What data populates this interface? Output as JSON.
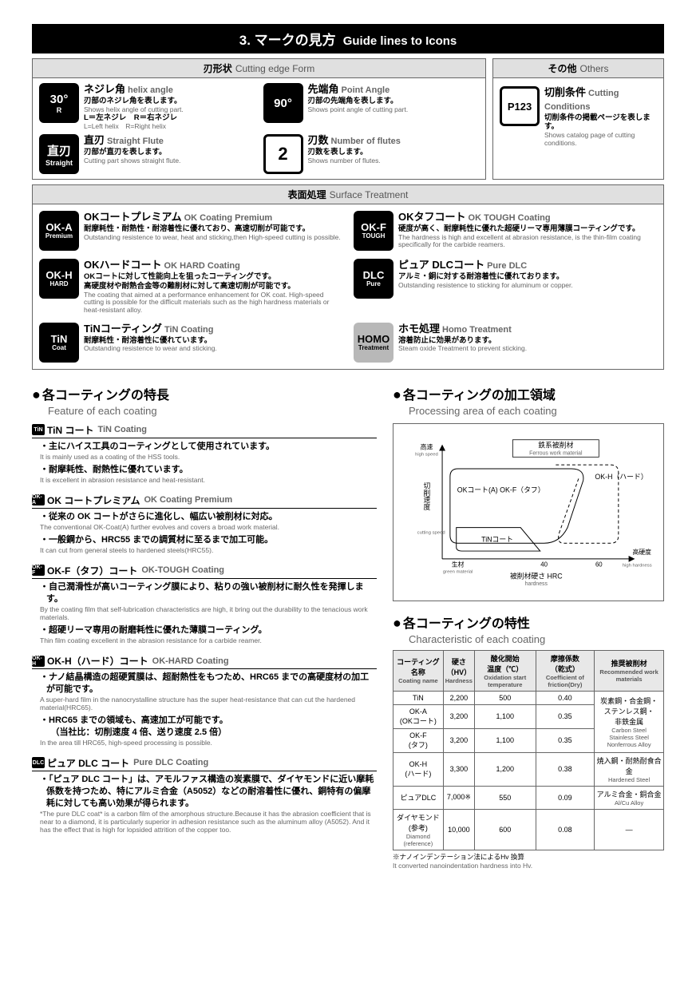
{
  "title": {
    "num": "3.",
    "jp": "マークの見方",
    "en": "Guide lines to Icons"
  },
  "cutting": {
    "header_jp": "刃形状",
    "header_en": "Cutting edge Form",
    "items": [
      {
        "icon_main": "30°",
        "icon_sub": "R",
        "h_jp": "ネジレ角",
        "h_en": "helix angle",
        "d_jp": "刃部のネジレ角を表します。",
        "d_en": "Shows helix angle of cutting part.",
        "extra_jp": "L＝左ネジレ　R＝右ネジレ",
        "extra_en": "L=Left helix　R=Right helix"
      },
      {
        "icon_main": "90°",
        "icon_sub": "",
        "h_jp": "先端角",
        "h_en": "Point Angle",
        "d_jp": "刃部の先端角を表します。",
        "d_en": "Shows point angle of cutting part."
      },
      {
        "icon_main": "直刃",
        "icon_sub": "Straight",
        "h_jp": "直刃",
        "h_en": "Straight Flute",
        "d_jp": "刃部が直刃を表します。",
        "d_en": "Cutting part shows straight flute."
      },
      {
        "icon_main": "2",
        "icon_sub": "",
        "h_jp": "刃数",
        "h_en": "Number of flutes",
        "d_jp": "刃数を表します。",
        "d_en": "Shows number of flutes.",
        "outline": true
      }
    ]
  },
  "others": {
    "header_jp": "その他",
    "header_en": "Others",
    "item": {
      "icon_main": "P123",
      "h_jp": "切削条件",
      "h_en": "Cutting Conditions",
      "d_jp": "切削条件の掲載ページを表します。",
      "d_en": "Shows catalog page of cutting conditions."
    }
  },
  "surface": {
    "header_jp": "表面処理",
    "header_en": "Surface Treatment",
    "items": [
      {
        "icon_top": "OK-A",
        "icon_bot": "Premium",
        "h_jp": "OKコートプレミアム",
        "h_en": "OK Coating Premium",
        "d_jp": "耐摩耗性・耐熱性・耐溶着性に優れており、高速切削が可能です。",
        "d_en": "Outstanding resistence to wear, heat and sticking,then High-speed cutting is possible."
      },
      {
        "icon_top": "OK-F",
        "icon_bot": "TOUGH",
        "h_jp": "OKタフコート",
        "h_en": "OK TOUGH Coating",
        "d_jp": "硬度が高く、耐摩耗性に優れた超硬リーマ専用薄膜コーティングです。",
        "d_en": "The hardness is high and excellent at abrasion resistance, is the thin-film coating specifically for the carbide reamers."
      },
      {
        "icon_top": "OK-H",
        "icon_bot": "HARD",
        "h_jp": "OKハードコート",
        "h_en": "OK HARD Coating",
        "d_jp": "OKコートに対して性能向上を狙ったコーティングです。\n高硬度材や耐熱合金等の難削材に対して高速切削が可能です。",
        "d_en": "The coating that aimed at a performance enhancement for OK coat. High-speed cutting is possible for the difficult materials such as the high hardness materials or heat-resistant alloy."
      },
      {
        "icon_top": "DLC",
        "icon_bot": "Pure",
        "h_jp": "ピュア DLCコート",
        "h_en": "Pure DLC",
        "d_jp": "アルミ・銅に対する耐溶着性に優れております。",
        "d_en": "Outstanding resistence to sticking for aluminum or copper."
      },
      {
        "icon_top": "TiN",
        "icon_bot": "Coat",
        "h_jp": "TiNコーティング",
        "h_en": "TiN Coating",
        "d_jp": "耐摩耗性・耐溶着性に優れています。",
        "d_en": "Outstanding resistence to wear and sticking."
      },
      {
        "icon_top": "HOMO",
        "icon_bot": "Treatment",
        "light": true,
        "h_jp": "ホモ処理",
        "h_en": "Homo Treatment",
        "d_jp": "溶着防止に効果があります。",
        "d_en": "Steam oxide Treatment to prevent sticking."
      }
    ]
  },
  "features": {
    "title_jp": "各コーティングの特長",
    "title_en": "Feature of each coating",
    "blocks": [
      {
        "badge": "TiN",
        "head_jp": "TiN コート",
        "head_en": "TiN Coating",
        "items": [
          {
            "jp": "・主にハイス工具のコーティングとして使用されています。",
            "en": "It is mainly used as a coating of the HSS tools."
          },
          {
            "jp": "・耐摩耗性、耐熱性に優れています。",
            "en": "It is excellent in abrasion resistance and heat-resistant."
          }
        ]
      },
      {
        "badge": "OK-A",
        "head_jp": "OK コートプレミアム",
        "head_en": "OK Coating Premium",
        "items": [
          {
            "jp": "・従来の OK コートがさらに進化し、幅広い被削材に対応。",
            "en": "The conventional OK-Coat(A) further evolves and covers a broad work material."
          },
          {
            "jp": "・一般鋼から、HRC55 までの調質材に至るまで加工可能。",
            "en": "It can cut from general steels to hardened steels(HRC55)."
          }
        ]
      },
      {
        "badge": "OK-F",
        "head_jp": "OK-F（タフ）コート",
        "head_en": "OK-TOUGH Coating",
        "items": [
          {
            "jp": "・自己潤滑性が高いコーティング膜により、粘りの強い被削材に耐久性を発揮します。",
            "en": "By the coating film that self-lubrication characteristics are high, it bring out the durability to the tenacious work materials."
          },
          {
            "jp": "・超硬リーマ専用の耐磨耗性に優れた薄膜コーティング。",
            "en": "Thin film coating excellent in the abrasion resistance for a carbide reamer."
          }
        ]
      },
      {
        "badge": "OK-H",
        "head_jp": "OK-H（ハード）コート",
        "head_en": "OK-HARD Coating",
        "items": [
          {
            "jp": "・ナノ結晶構造の超硬質膜は、超耐熱性をもつため、HRC65 までの高硬度材の加工が可能です。",
            "en": "A super-hard film in the nanocrystalline structure has the super heat-resistance that can cut the hardened material(HRC65)."
          },
          {
            "jp": "・HRC65 までの領域も、高速加工が可能です。\n　（当社比：切削速度 4 倍、送り速度 2.5 倍）",
            "en": "In the area till HRC65, high-speed processing is possible."
          }
        ]
      },
      {
        "badge": "DLC",
        "head_jp": "ピュア DLC コート",
        "head_en": "Pure DLC Coating",
        "items": [
          {
            "jp": "・「ピュア DLC コート」は、アモルファス構造の炭素膜で、ダイヤモンドに近い摩耗係数を持つため、特にアルミ合金（A5052）などの耐溶着性に優れ、銅特有の偏摩耗に対しても高い効果が得られます。",
            "en": "*The pure DLC coat* is a carbon film of the amorphous structure.Because it has the abrasion coefficient that is near to a diamond, it is particularly superior in adhesion resistance such as the aluminum alloy (A5052). And it has the effect that is high for lopsided attrition of the copper too."
          }
        ]
      }
    ]
  },
  "area": {
    "title_jp": "各コーティングの加工領域",
    "title_en": "Processing area of each coating",
    "chart": {
      "y_label_jp": "切削速度",
      "y_label_en": "cutting speed",
      "y_top_jp": "高速",
      "y_top_en": "high speed",
      "x_label_jp": "被削材硬さ HRC",
      "x_label_en": "hardness",
      "x_left_jp": "生材",
      "x_left_en": "green material",
      "x_right_jp": "高硬度",
      "x_right_en": "high hardness",
      "xticks": [
        "40",
        "60"
      ],
      "group_jp": "鉄系被削材",
      "group_en": "Ferrous work material",
      "regions": {
        "ok": "OKコート(A)\nOK-F（タフ）",
        "okh": "OK-H（ハード）",
        "tin": "TiNコート"
      }
    }
  },
  "char": {
    "title_jp": "各コーティングの特性",
    "title_en": "Characteristic of each coating",
    "headers": [
      {
        "jp": "コーティング名称",
        "en": "Coating name"
      },
      {
        "jp": "硬さ\n（HV）",
        "en": "Hardness"
      },
      {
        "jp": "酸化開始\n温度（℃）",
        "en": "Oxidation start temperature"
      },
      {
        "jp": "摩擦係数\n（乾式）",
        "en": "Coefficient of friction(Dry)"
      },
      {
        "jp": "推奨被削材",
        "en": "Recommended work materials"
      }
    ],
    "rows": [
      {
        "name": "TiN",
        "hv": "2,200",
        "ox": "500",
        "fr": "0.40",
        "mat_span": "start",
        "mat_jp": "炭素鋼・合金鋼・\nステンレス鋼・\n非鉄金属",
        "mat_en": "Carbon Steel\nStainless Steel\nNonferrous Alloy"
      },
      {
        "name": "OK-A\n(OKコート)",
        "hv": "3,200",
        "ox": "1,100",
        "fr": "0.35",
        "mat_span": "cont"
      },
      {
        "name": "OK-F\n(タフ)",
        "hv": "3,200",
        "ox": "1,100",
        "fr": "0.35",
        "mat_span": "cont"
      },
      {
        "name": "OK-H\n(ハード)",
        "hv": "3,300",
        "ox": "1,200",
        "fr": "0.38",
        "mat_jp": "焼入鋼・耐熱耐食合金",
        "mat_en": "Hardened Steel"
      },
      {
        "name": "ピュアDLC",
        "hv": "7,000※",
        "ox": "550",
        "fr": "0.09",
        "mat_jp": "アルミ合金・銅合金",
        "mat_en": "Al/Cu Alloy"
      },
      {
        "name": "ダイヤモンド(参考)",
        "name_en": "Diamond (reference)",
        "hv": "10,000",
        "ox": "600",
        "fr": "0.08",
        "mat_jp": "—"
      }
    ],
    "footnote_jp": "※ナノインデンテーション法によるHv 換算",
    "footnote_en": "It converted nanoindentation hardness into Hv."
  }
}
